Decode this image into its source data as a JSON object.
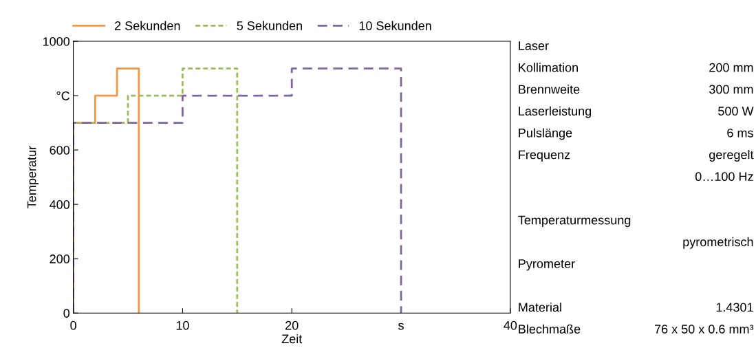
{
  "chart_data": [
    {
      "type": "step",
      "xlabel": "Zeit",
      "ylabel": "Temperatur",
      "xlim": [
        0,
        40
      ],
      "ylim": [
        0,
        1000
      ],
      "xticks": [
        0,
        10,
        20,
        {
          "value": 30,
          "label": "s"
        },
        40
      ],
      "yticks": [
        0,
        200,
        400,
        600,
        {
          "value": 800,
          "label": "°C"
        },
        1000
      ],
      "grid": false,
      "legend": "top left",
      "series": [
        {
          "name": "2 Sekunden",
          "color": "#f79646",
          "line_style": "solid",
          "x": [
            0,
            0,
            2,
            4,
            6
          ],
          "values": [
            0,
            700,
            800,
            900,
            0
          ]
        },
        {
          "name": "5 Sekunden",
          "color": "#9bbb59",
          "line_style": "dotted",
          "x": [
            0,
            0,
            5,
            10,
            15
          ],
          "values": [
            0,
            700,
            800,
            900,
            0
          ]
        },
        {
          "name": "10 Sekunden",
          "color": "#8064a2",
          "line_style": "dashed",
          "x": [
            0,
            0,
            10,
            20,
            30
          ],
          "values": [
            0,
            700,
            800,
            900,
            0
          ]
        }
      ]
    },
    {
      "type": "other",
      "categories": [
        "Laser",
        "Kollimation",
        "Brennweite",
        "Laserleistung",
        "Pulslänge",
        "Frequenz",
        null,
        null,
        "Temperaturmessung",
        null,
        "Pyrometer",
        null,
        "Material",
        "Blechmaße"
      ],
      "value_labels": [
        null,
        "200 mm",
        "300 mm",
        "500 W",
        "6 ms",
        "geregelt",
        "0…100 Hz",
        null,
        null,
        "pyrometrisch",
        null,
        null,
        "1.4301",
        "76 x 50 x 0.6 mm³"
      ]
    }
  ]
}
